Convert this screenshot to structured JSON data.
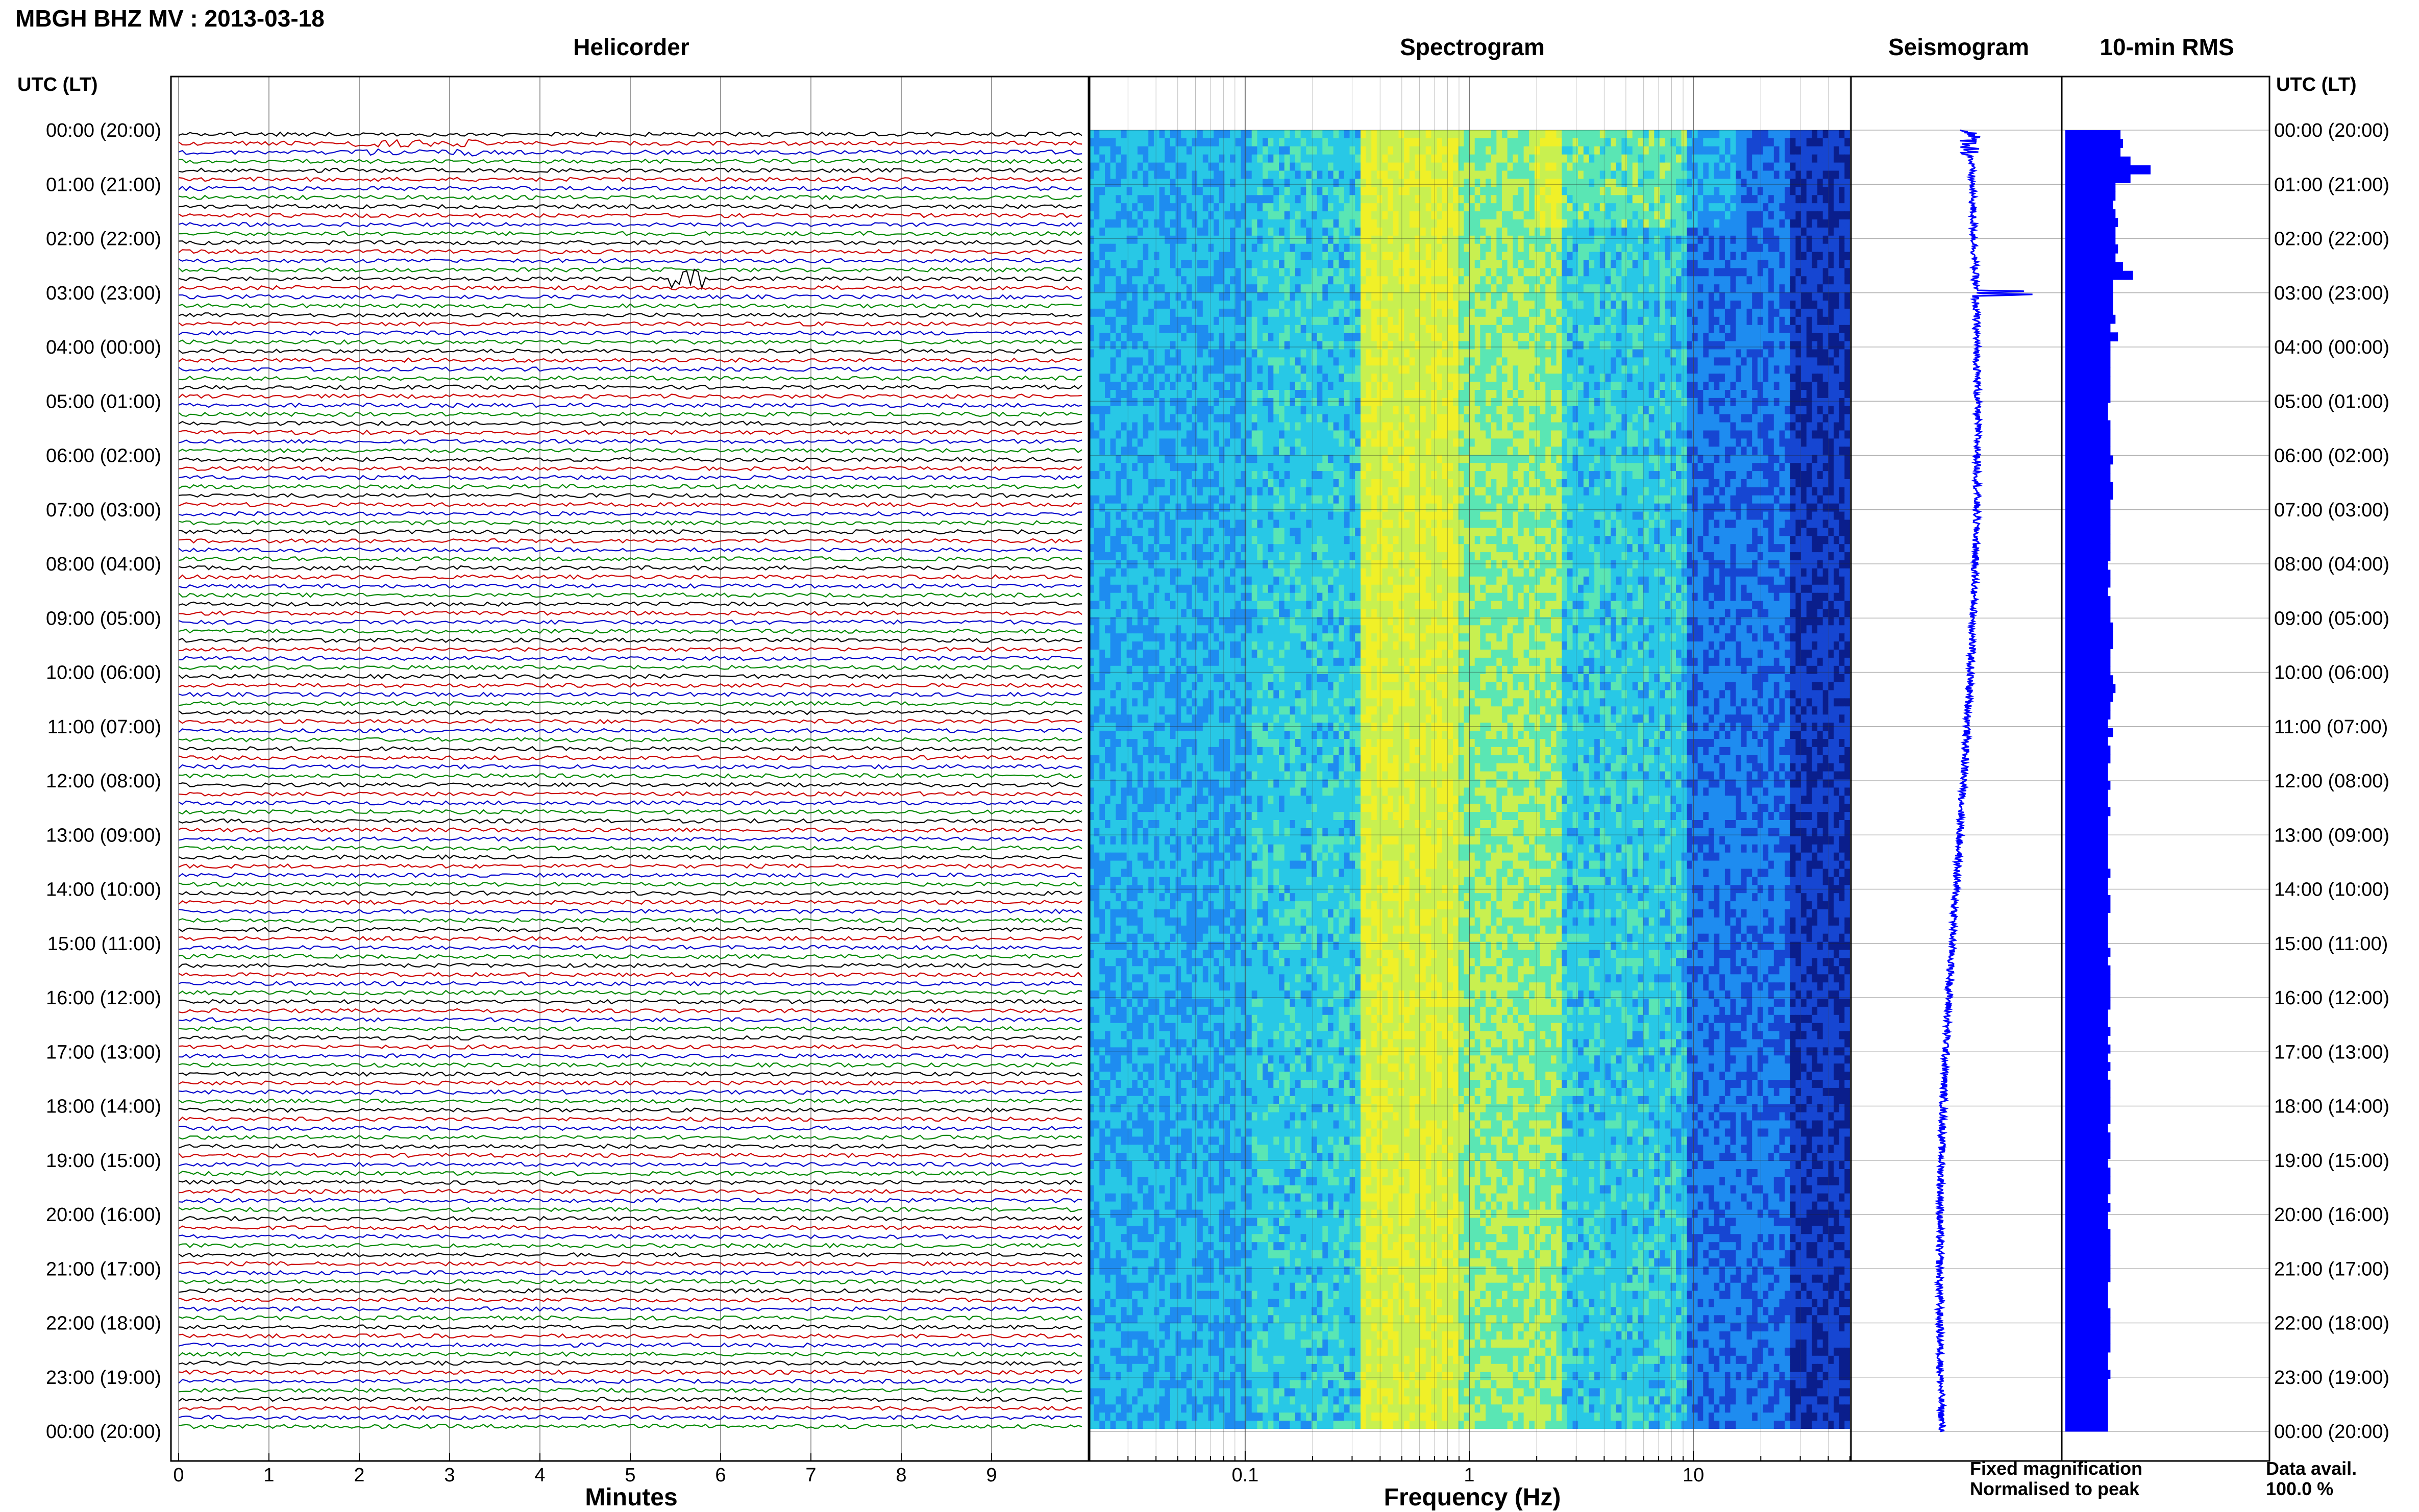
{
  "header": {
    "title": "MBGH BHZ MV : 2013-03-18"
  },
  "panels": {
    "helicorder": "Helicorder",
    "spectrogram": "Spectrogram",
    "seismogram": "Seismogram",
    "rms": "10-min RMS"
  },
  "axes": {
    "utc_label_left": "UTC (LT)",
    "utc_label_right": "UTC (LT)",
    "minutes_label": "Minutes",
    "frequency_label": "Frequency (Hz)"
  },
  "legend": {
    "fixed": "Fixed magnification",
    "normalised": "Normalised to peak",
    "data_avail_label": "Data avail.",
    "data_avail_value": "100.0 %"
  },
  "colors": {
    "trace_cycle": [
      "#000000",
      "#cc0000",
      "#0000cc",
      "#008800"
    ],
    "legend_fixed": "#0000ff",
    "legend_normalised": "#ff0000",
    "seismogram": "#0000ff",
    "rms": "#0000ff"
  },
  "chart_data": {
    "type": "heatmap",
    "time_labels": [
      "00:00 (20:00)",
      "01:00 (21:00)",
      "02:00 (22:00)",
      "03:00 (23:00)",
      "04:00 (00:00)",
      "05:00 (01:00)",
      "06:00 (02:00)",
      "07:00 (03:00)",
      "08:00 (04:00)",
      "09:00 (05:00)",
      "10:00 (06:00)",
      "11:00 (07:00)",
      "12:00 (08:00)",
      "13:00 (09:00)",
      "14:00 (10:00)",
      "15:00 (11:00)",
      "16:00 (12:00)",
      "17:00 (13:00)",
      "18:00 (14:00)",
      "19:00 (15:00)",
      "20:00 (16:00)",
      "21:00 (17:00)",
      "22:00 (18:00)",
      "23:00 (19:00)",
      "00:00 (20:00)"
    ],
    "helicorder": {
      "x_ticks": [
        "0",
        "1",
        "2",
        "3",
        "4",
        "5",
        "6",
        "7",
        "8",
        "9"
      ],
      "xlim": [
        0,
        10
      ],
      "lines_per_hour": 6,
      "hours": 24
    },
    "spectrogram": {
      "x_ticks": [
        "0.1",
        "1",
        "10"
      ],
      "x_tick_values": [
        0.1,
        1,
        10
      ],
      "xlim": [
        0.02,
        50
      ],
      "xscale": "log",
      "colormap": [
        "#0a1e8c",
        "#1646d2",
        "#1e8cf0",
        "#28c8e6",
        "#5ae6b4",
        "#c8f050",
        "#f0f028"
      ]
    },
    "rms_10min": [
      2.2,
      2.3,
      2.2,
      2.6,
      3.4,
      2.6,
      2.0,
      2.0,
      1.9,
      2.0,
      2.1,
      2.0,
      2.0,
      2.1,
      2.0,
      2.3,
      2.7,
      1.9,
      1.9,
      1.9,
      1.9,
      2.0,
      1.8,
      2.1,
      1.8,
      1.8,
      1.8,
      1.8,
      1.8,
      1.8,
      1.8,
      1.7,
      1.7,
      1.8,
      1.8,
      1.8,
      1.8,
      1.9,
      1.8,
      1.8,
      1.9,
      1.9,
      1.8,
      1.8,
      1.8,
      1.8,
      1.8,
      1.8,
      1.8,
      1.7,
      1.8,
      1.8,
      1.7,
      1.8,
      1.8,
      1.8,
      1.9,
      1.9,
      1.9,
      1.8,
      1.8,
      1.8,
      1.9,
      2.0,
      1.9,
      1.8,
      1.8,
      1.7,
      1.9,
      1.7,
      1.8,
      1.8,
      1.7,
      1.7,
      1.8,
      1.7,
      1.7,
      1.8,
      1.7,
      1.7,
      1.7,
      1.7,
      1.7,
      1.7,
      1.8,
      1.7,
      1.7,
      1.8,
      1.8,
      1.7,
      1.7,
      1.7,
      1.7,
      1.8,
      1.7,
      1.8,
      1.8,
      1.8,
      1.8,
      1.8,
      1.7,
      1.7,
      1.8,
      1.7,
      1.8,
      1.7,
      1.8,
      1.7,
      1.8,
      1.8,
      1.8,
      1.8,
      1.8,
      1.7,
      1.8,
      1.8,
      1.8,
      1.7,
      1.8,
      1.8,
      1.8,
      1.7,
      1.8,
      1.7,
      1.7,
      1.8,
      1.8,
      1.8,
      1.8,
      1.8,
      1.8,
      1.7,
      1.7,
      1.7,
      1.8,
      1.8,
      1.8,
      1.8,
      1.8,
      1.7,
      1.7,
      1.8,
      1.7,
      1.7,
      1.7,
      1.7,
      1.7,
      1.7
    ]
  }
}
